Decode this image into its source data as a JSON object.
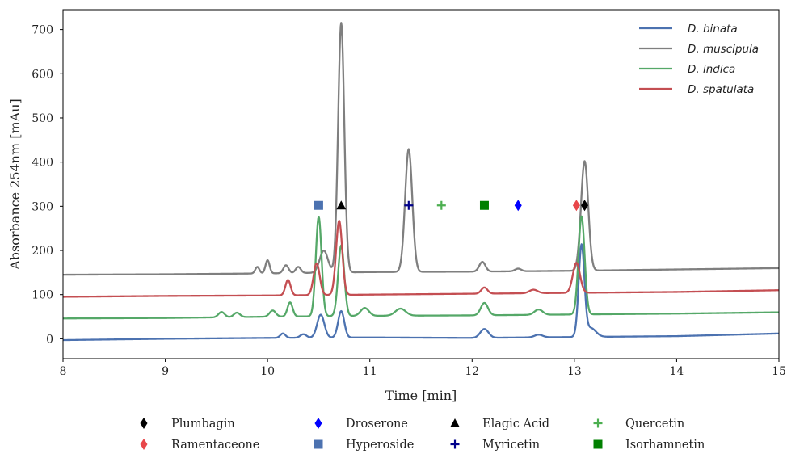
{
  "chart_data": {
    "type": "line",
    "title": "",
    "xlabel": "Time [min]",
    "ylabel": "Absorbance 254nm [mAu]",
    "xlim": [
      8,
      15
    ],
    "ylim": [
      -45,
      745
    ],
    "xticks": [
      8,
      9,
      10,
      11,
      12,
      13,
      14,
      15
    ],
    "yticks": [
      0,
      100,
      200,
      300,
      400,
      500,
      600,
      700
    ],
    "grid": false,
    "legend_position": "top-right",
    "series": [
      {
        "name": "D. binata",
        "color": "#4c72b0",
        "baseline": [
          [
            8,
            -3
          ],
          [
            9,
            0
          ],
          [
            10,
            2
          ],
          [
            11,
            3
          ],
          [
            12,
            2
          ],
          [
            13,
            4
          ],
          [
            14,
            6
          ],
          [
            15,
            12
          ]
        ],
        "peaks": [
          [
            10.15,
            10,
            0.025
          ],
          [
            10.35,
            8,
            0.03
          ],
          [
            10.52,
            52,
            0.035
          ],
          [
            10.72,
            60,
            0.03
          ],
          [
            12.12,
            20,
            0.04
          ],
          [
            12.65,
            6,
            0.04
          ],
          [
            13.07,
            206,
            0.028
          ],
          [
            13.16,
            20,
            0.05
          ]
        ]
      },
      {
        "name": "D. muscipula",
        "color": "#7f7f7f",
        "baseline": [
          [
            8,
            145
          ],
          [
            9,
            146
          ],
          [
            10,
            148
          ],
          [
            11,
            151
          ],
          [
            12,
            152
          ],
          [
            13,
            154
          ],
          [
            14,
            157
          ],
          [
            15,
            160
          ]
        ],
        "peaks": [
          [
            9.9,
            15,
            0.02
          ],
          [
            10.0,
            30,
            0.02
          ],
          [
            10.18,
            18,
            0.025
          ],
          [
            10.3,
            14,
            0.025
          ],
          [
            10.55,
            50,
            0.04
          ],
          [
            10.72,
            565,
            0.03
          ],
          [
            11.38,
            278,
            0.035
          ],
          [
            12.1,
            22,
            0.03
          ],
          [
            12.45,
            6,
            0.03
          ],
          [
            13.1,
            248,
            0.035
          ]
        ]
      },
      {
        "name": "D. indica",
        "color": "#55a868",
        "baseline": [
          [
            8,
            46
          ],
          [
            9,
            47
          ],
          [
            10,
            50
          ],
          [
            11,
            52
          ],
          [
            12,
            53
          ],
          [
            13,
            55
          ],
          [
            14,
            57
          ],
          [
            15,
            60
          ]
        ],
        "peaks": [
          [
            9.55,
            12,
            0.03
          ],
          [
            9.7,
            10,
            0.03
          ],
          [
            10.05,
            14,
            0.03
          ],
          [
            10.22,
            32,
            0.025
          ],
          [
            10.5,
            225,
            0.028
          ],
          [
            10.72,
            160,
            0.03
          ],
          [
            10.95,
            18,
            0.04
          ],
          [
            11.3,
            16,
            0.05
          ],
          [
            12.12,
            28,
            0.035
          ],
          [
            12.65,
            12,
            0.04
          ],
          [
            13.07,
            222,
            0.03
          ]
        ]
      },
      {
        "name": "D. spatulata",
        "color": "#c44e52",
        "baseline": [
          [
            8,
            95
          ],
          [
            9,
            97
          ],
          [
            10,
            98
          ],
          [
            11,
            100
          ],
          [
            12,
            102
          ],
          [
            13,
            104
          ],
          [
            14,
            106
          ],
          [
            15,
            110
          ]
        ],
        "peaks": [
          [
            10.2,
            35,
            0.025
          ],
          [
            10.48,
            72,
            0.03
          ],
          [
            10.7,
            168,
            0.03
          ],
          [
            12.12,
            14,
            0.03
          ],
          [
            12.6,
            8,
            0.04
          ],
          [
            13.02,
            68,
            0.035
          ]
        ]
      }
    ],
    "markers": [
      {
        "name": "Plumbagin",
        "color": "#000000",
        "symbol": "diamond",
        "x": 13.1,
        "y": 302
      },
      {
        "name": "Ramentaceone",
        "color": "#e8474a",
        "symbol": "diamond",
        "x": 13.02,
        "y": 302
      },
      {
        "name": "Droserone",
        "color": "#0000ff",
        "symbol": "diamond",
        "x": 12.45,
        "y": 302
      },
      {
        "name": "Hyperoside",
        "color": "#4c72b0",
        "symbol": "square",
        "x": 10.5,
        "y": 302
      },
      {
        "name": "Elagic Acid",
        "color": "#000000",
        "symbol": "triangle",
        "x": 10.72,
        "y": 302
      },
      {
        "name": "Myricetin",
        "color": "#00008b",
        "symbol": "plus",
        "x": 11.38,
        "y": 302
      },
      {
        "name": "Quercetin",
        "color": "#4caf50",
        "symbol": "plus",
        "x": 11.7,
        "y": 302
      },
      {
        "name": "Isorhamnetin",
        "color": "#008000",
        "symbol": "square",
        "x": 12.12,
        "y": 302
      }
    ]
  }
}
